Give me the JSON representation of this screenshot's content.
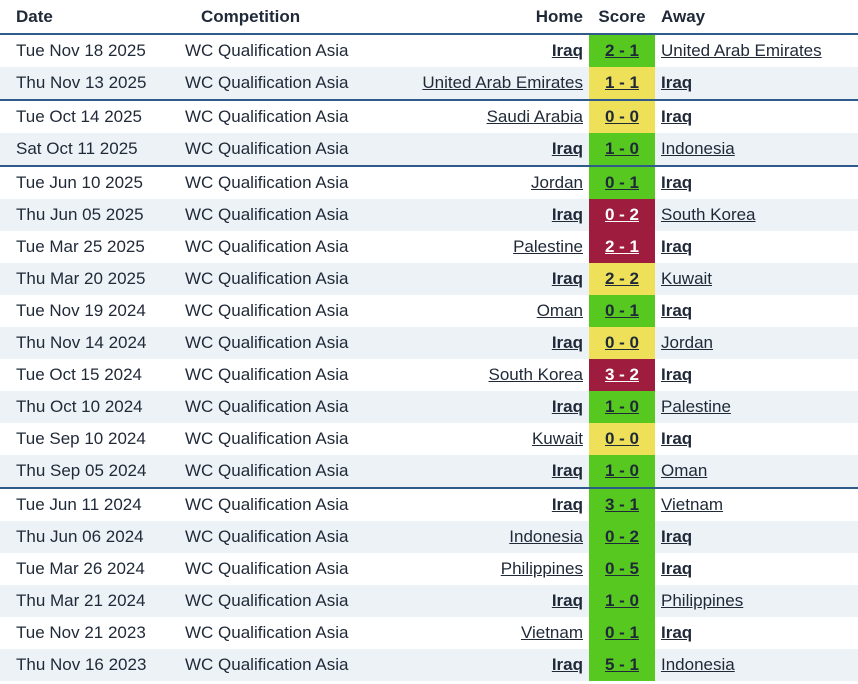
{
  "headers": {
    "date": "Date",
    "competition": "Competition",
    "home": "Home",
    "score": "Score",
    "away": "Away"
  },
  "result_colors": {
    "win": "#56c81f",
    "draw": "#efe05a",
    "loss": "#9e1c3e"
  },
  "matches": [
    {
      "date": "Tue Nov 18 2025",
      "competition": "WC Qualification Asia",
      "home": "Iraq",
      "score": "2 - 1",
      "away": "United Arab Emirates",
      "result": "win"
    },
    {
      "date": "Thu Nov 13 2025",
      "competition": "WC Qualification Asia",
      "home": "United Arab Emirates",
      "score": "1 - 1",
      "away": "Iraq",
      "result": "draw"
    },
    {
      "date": "Tue Oct 14 2025",
      "competition": "WC Qualification Asia",
      "home": "Saudi Arabia",
      "score": "0 - 0",
      "away": "Iraq",
      "result": "draw"
    },
    {
      "date": "Sat Oct 11 2025",
      "competition": "WC Qualification Asia",
      "home": "Iraq",
      "score": "1 - 0",
      "away": "Indonesia",
      "result": "win"
    },
    {
      "date": "Tue Jun 10 2025",
      "competition": "WC Qualification Asia",
      "home": "Jordan",
      "score": "0 - 1",
      "away": "Iraq",
      "result": "win"
    },
    {
      "date": "Thu Jun 05 2025",
      "competition": "WC Qualification Asia",
      "home": "Iraq",
      "score": "0 - 2",
      "away": "South Korea",
      "result": "loss"
    },
    {
      "date": "Tue Mar 25 2025",
      "competition": "WC Qualification Asia",
      "home": "Palestine",
      "score": "2 - 1",
      "away": "Iraq",
      "result": "loss"
    },
    {
      "date": "Thu Mar 20 2025",
      "competition": "WC Qualification Asia",
      "home": "Iraq",
      "score": "2 - 2",
      "away": "Kuwait",
      "result": "draw"
    },
    {
      "date": "Tue Nov 19 2024",
      "competition": "WC Qualification Asia",
      "home": "Oman",
      "score": "0 - 1",
      "away": "Iraq",
      "result": "win"
    },
    {
      "date": "Thu Nov 14 2024",
      "competition": "WC Qualification Asia",
      "home": "Iraq",
      "score": "0 - 0",
      "away": "Jordan",
      "result": "draw"
    },
    {
      "date": "Tue Oct 15 2024",
      "competition": "WC Qualification Asia",
      "home": "South Korea",
      "score": "3 - 2",
      "away": "Iraq",
      "result": "loss"
    },
    {
      "date": "Thu Oct 10 2024",
      "competition": "WC Qualification Asia",
      "home": "Iraq",
      "score": "1 - 0",
      "away": "Palestine",
      "result": "win"
    },
    {
      "date": "Tue Sep 10 2024",
      "competition": "WC Qualification Asia",
      "home": "Kuwait",
      "score": "0 - 0",
      "away": "Iraq",
      "result": "draw"
    },
    {
      "date": "Thu Sep 05 2024",
      "competition": "WC Qualification Asia",
      "home": "Iraq",
      "score": "1 - 0",
      "away": "Oman",
      "result": "win"
    },
    {
      "date": "Tue Jun 11 2024",
      "competition": "WC Qualification Asia",
      "home": "Iraq",
      "score": "3 - 1",
      "away": "Vietnam",
      "result": "win"
    },
    {
      "date": "Thu Jun 06 2024",
      "competition": "WC Qualification Asia",
      "home": "Indonesia",
      "score": "0 - 2",
      "away": "Iraq",
      "result": "win"
    },
    {
      "date": "Tue Mar 26 2024",
      "competition": "WC Qualification Asia",
      "home": "Philippines",
      "score": "0 - 5",
      "away": "Iraq",
      "result": "win"
    },
    {
      "date": "Thu Mar 21 2024",
      "competition": "WC Qualification Asia",
      "home": "Iraq",
      "score": "1 - 0",
      "away": "Philippines",
      "result": "win"
    },
    {
      "date": "Tue Nov 21 2023",
      "competition": "WC Qualification Asia",
      "home": "Vietnam",
      "score": "0 - 1",
      "away": "Iraq",
      "result": "win"
    },
    {
      "date": "Thu Nov 16 2023",
      "competition": "WC Qualification Asia",
      "home": "Iraq",
      "score": "5 - 1",
      "away": "Indonesia",
      "result": "win"
    }
  ]
}
